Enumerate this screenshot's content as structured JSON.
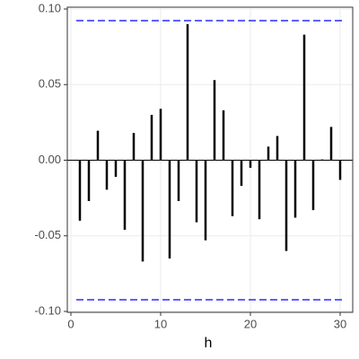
{
  "chart_data": {
    "type": "acf",
    "x_label": "h",
    "x": [
      1,
      2,
      3,
      4,
      5,
      6,
      7,
      8,
      9,
      10,
      11,
      12,
      13,
      14,
      15,
      16,
      17,
      18,
      19,
      20,
      21,
      22,
      23,
      24,
      25,
      26,
      27,
      28,
      29,
      30
    ],
    "values": [
      -0.04,
      -0.027,
      0.0195,
      -0.0195,
      -0.011,
      -0.046,
      0.018,
      -0.067,
      0.03,
      0.034,
      -0.065,
      -0.027,
      0.09,
      -0.041,
      -0.053,
      0.053,
      0.033,
      -0.037,
      -0.017,
      -0.005,
      -0.039,
      0.009,
      0.016,
      -0.06,
      -0.038,
      0.083,
      -0.033,
      0.0005,
      0.022,
      -0.013
    ],
    "color": "#000000",
    "ci_bounds": [
      0.0923,
      -0.0923
    ],
    "ci_color": "#0000ff",
    "xlim": [
      -0.4,
      31.4
    ],
    "ylim": [
      -0.1006,
      0.1012
    ],
    "xticks": [
      0,
      10,
      20,
      30
    ],
    "yticks": [
      {
        "value": -0.1,
        "label": "-0.10"
      },
      {
        "value": -0.05,
        "label": "-0.05"
      },
      {
        "value": 0,
        "label": "0.00"
      },
      {
        "value": 0.05,
        "label": "0.05"
      },
      {
        "value": 0.1,
        "label": "0.10"
      }
    ],
    "grid": true
  }
}
